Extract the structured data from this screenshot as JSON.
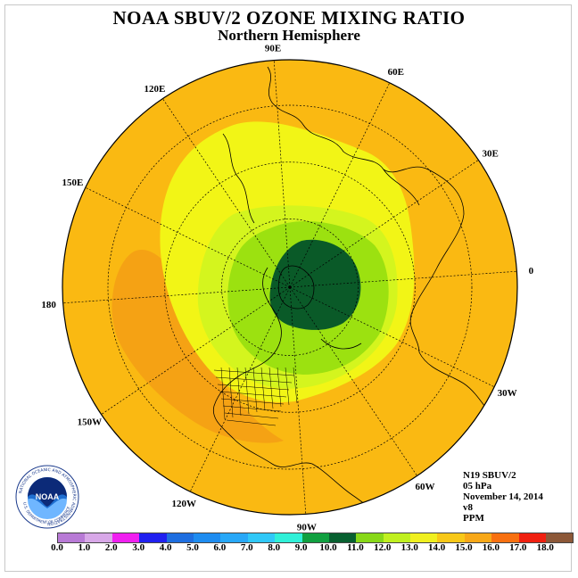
{
  "title": "NOAA SBUV/2 OZONE MIXING RATIO",
  "subtitle": "Northern Hemisphere",
  "longitude_labels": [
    {
      "text": "90E",
      "lon": 90
    },
    {
      "text": "60E",
      "lon": 60
    },
    {
      "text": "30E",
      "lon": 30
    },
    {
      "text": "0",
      "lon": 0
    },
    {
      "text": "30W",
      "lon": -30
    },
    {
      "text": "60W",
      "lon": -60
    },
    {
      "text": "90W",
      "lon": -90
    },
    {
      "text": "120W",
      "lon": -120
    },
    {
      "text": "150W",
      "lon": -150
    },
    {
      "text": "180",
      "lon": 180
    },
    {
      "text": "150E",
      "lon": 150
    },
    {
      "text": "120E",
      "lon": 120
    }
  ],
  "info": {
    "satellite": "N19 SBUV/2",
    "level": "05 hPa",
    "date": "November 14, 2014",
    "version": "v8",
    "units": "PPM"
  },
  "colorbar": {
    "colors": [
      "#b87ad6",
      "#d8a8e8",
      "#f020f0",
      "#2020f0",
      "#1e6ee0",
      "#1e8cf0",
      "#28a8f8",
      "#30c8f8",
      "#30f0d8",
      "#10a040",
      "#086030",
      "#88d818",
      "#c0f020",
      "#f0f020",
      "#f8c818",
      "#f8a818",
      "#f87010",
      "#f02010",
      "#8c5838"
    ],
    "labels": [
      "0.0",
      "1.0",
      "2.0",
      "3.0",
      "4.0",
      "5.0",
      "6.0",
      "7.0",
      "8.0",
      "9.0",
      "10.0",
      "11.0",
      "12.0",
      "13.0",
      "14.0",
      "15.0",
      "16.0",
      "17.0",
      "18.0"
    ]
  },
  "zone_colors": {
    "orange_dark": "#f5a214",
    "orange": "#fab912",
    "yellow": "#f2f516",
    "yellow_green": "#d4f51e",
    "light_green": "#9ce110",
    "dark_green": "#0a5a28"
  },
  "logo": {
    "text": "NOAA",
    "ring_text": "NATIONAL OCEANIC AND ATMOSPHERIC ADMINISTRATION",
    "bottom_text": "U.S. DEPARTMENT OF COMMERCE"
  }
}
